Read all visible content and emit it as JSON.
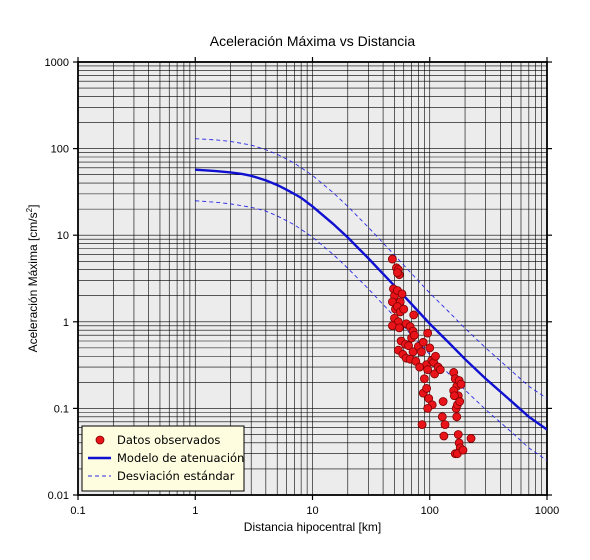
{
  "chart_data": {
    "type": "scatter",
    "title": "Aceleración Máxima vs Distancia",
    "xlabel": "Distancia hipocentral [km]",
    "ylabel_main": "Aceleración Máxima [cm/s",
    "ylabel_sup": "2",
    "ylabel_end": "]",
    "x_scale": "log",
    "y_scale": "log",
    "xlim": [
      0.1,
      1000
    ],
    "ylim": [
      0.01,
      1000
    ],
    "grid": true,
    "legend_position": "bottom-left",
    "x_ticks": [
      "0.1",
      "1",
      "10",
      "100",
      "1000"
    ],
    "y_ticks": [
      "0.01",
      "0.1",
      "1",
      "10",
      "100",
      "1000"
    ],
    "colors": {
      "background": "#ececec",
      "grid": "#000000",
      "points_fill": "#e8141a",
      "points_edge": "#800000",
      "model": "#1010d0",
      "deviation": "#2a2ae6",
      "legend_bg": "#fffde0"
    },
    "series": [
      {
        "name": "Datos observados",
        "kind": "points",
        "points": [
          [
            48,
            5.3
          ],
          [
            52,
            4.2
          ],
          [
            54,
            4.0
          ],
          [
            55,
            3.5
          ],
          [
            53,
            3.7
          ],
          [
            49,
            2.4
          ],
          [
            50,
            2.0
          ],
          [
            53,
            2.3
          ],
          [
            56,
            1.7
          ],
          [
            58,
            2.1
          ],
          [
            48,
            1.7
          ],
          [
            51,
            1.4
          ],
          [
            53,
            1.5
          ],
          [
            56,
            1.3
          ],
          [
            60,
            1.4
          ],
          [
            50,
            1.1
          ],
          [
            54,
            1.0
          ],
          [
            48,
            0.9
          ],
          [
            55,
            0.85
          ],
          [
            63,
            0.95
          ],
          [
            68,
            0.88
          ],
          [
            72,
            0.78
          ],
          [
            73,
            1.2
          ],
          [
            57,
            0.6
          ],
          [
            54,
            0.47
          ],
          [
            62,
            0.55
          ],
          [
            66,
            0.53
          ],
          [
            70,
            0.65
          ],
          [
            74,
            0.7
          ],
          [
            59,
            0.42
          ],
          [
            63,
            0.38
          ],
          [
            68,
            0.37
          ],
          [
            72,
            0.45
          ],
          [
            76,
            0.35
          ],
          [
            80,
            0.52
          ],
          [
            85,
            0.45
          ],
          [
            88,
            0.58
          ],
          [
            94,
            0.32
          ],
          [
            96,
            0.74
          ],
          [
            100,
            0.5
          ],
          [
            104,
            0.36
          ],
          [
            108,
            0.34
          ],
          [
            110,
            0.25
          ],
          [
            112,
            0.4
          ],
          [
            118,
            0.3
          ],
          [
            123,
            0.28
          ],
          [
            82,
            0.3
          ],
          [
            90,
            0.22
          ],
          [
            96,
            0.28
          ],
          [
            88,
            0.15
          ],
          [
            94,
            0.17
          ],
          [
            98,
            0.13
          ],
          [
            105,
            0.11
          ],
          [
            96,
            0.1
          ],
          [
            86,
            0.065
          ],
          [
            130,
            0.12
          ],
          [
            128,
            0.08
          ],
          [
            135,
            0.065
          ],
          [
            132,
            0.048
          ],
          [
            160,
            0.26
          ],
          [
            165,
            0.22
          ],
          [
            170,
            0.18
          ],
          [
            175,
            0.14
          ],
          [
            160,
            0.16
          ],
          [
            162,
            0.14
          ],
          [
            168,
            0.1
          ],
          [
            172,
            0.11
          ],
          [
            178,
            0.21
          ],
          [
            185,
            0.19
          ],
          [
            180,
            0.12
          ],
          [
            170,
            0.08
          ],
          [
            175,
            0.05
          ],
          [
            178,
            0.04
          ],
          [
            182,
            0.035
          ],
          [
            165,
            0.03
          ],
          [
            172,
            0.03
          ],
          [
            192,
            0.033
          ],
          [
            225,
            0.045
          ]
        ]
      },
      {
        "name": "Modelo de atenuación",
        "kind": "line",
        "points": [
          [
            1,
            57
          ],
          [
            1.5,
            55
          ],
          [
            2,
            53
          ],
          [
            2.5,
            51
          ],
          [
            3,
            48.5
          ],
          [
            4,
            43
          ],
          [
            5,
            38
          ],
          [
            6,
            33.5
          ],
          [
            7,
            30
          ],
          [
            8,
            27
          ],
          [
            10,
            21.5
          ],
          [
            15,
            13.5
          ],
          [
            20,
            9.4
          ],
          [
            30,
            5.4
          ],
          [
            50,
            2.6
          ],
          [
            70,
            1.6
          ],
          [
            100,
            0.95
          ],
          [
            150,
            0.55
          ],
          [
            200,
            0.37
          ],
          [
            300,
            0.22
          ],
          [
            500,
            0.12
          ],
          [
            700,
            0.08
          ],
          [
            1000,
            0.057
          ]
        ]
      },
      {
        "name": "Desviación estándar",
        "kind": "dashed",
        "points_upper": [
          [
            1,
            130
          ],
          [
            1.5,
            126
          ],
          [
            2,
            121
          ],
          [
            3,
            110
          ],
          [
            4,
            97
          ],
          [
            5,
            86
          ],
          [
            7,
            68
          ],
          [
            10,
            49
          ],
          [
            15,
            31
          ],
          [
            20,
            21.5
          ],
          [
            30,
            12.3
          ],
          [
            50,
            5.9
          ],
          [
            70,
            3.6
          ],
          [
            100,
            2.15
          ],
          [
            150,
            1.25
          ],
          [
            200,
            0.84
          ],
          [
            300,
            0.5
          ],
          [
            500,
            0.27
          ],
          [
            700,
            0.18
          ],
          [
            1000,
            0.13
          ]
        ],
        "points_lower": [
          [
            1,
            25
          ],
          [
            1.5,
            24
          ],
          [
            2,
            23
          ],
          [
            3,
            21
          ],
          [
            4,
            19
          ],
          [
            5,
            16.7
          ],
          [
            7,
            13.2
          ],
          [
            10,
            9.5
          ],
          [
            15,
            6
          ],
          [
            20,
            4.15
          ],
          [
            30,
            2.4
          ],
          [
            50,
            1.15
          ],
          [
            70,
            0.7
          ],
          [
            100,
            0.42
          ],
          [
            150,
            0.24
          ],
          [
            200,
            0.163
          ],
          [
            300,
            0.097
          ],
          [
            500,
            0.053
          ],
          [
            700,
            0.035
          ],
          [
            1000,
            0.025
          ]
        ]
      }
    ]
  }
}
